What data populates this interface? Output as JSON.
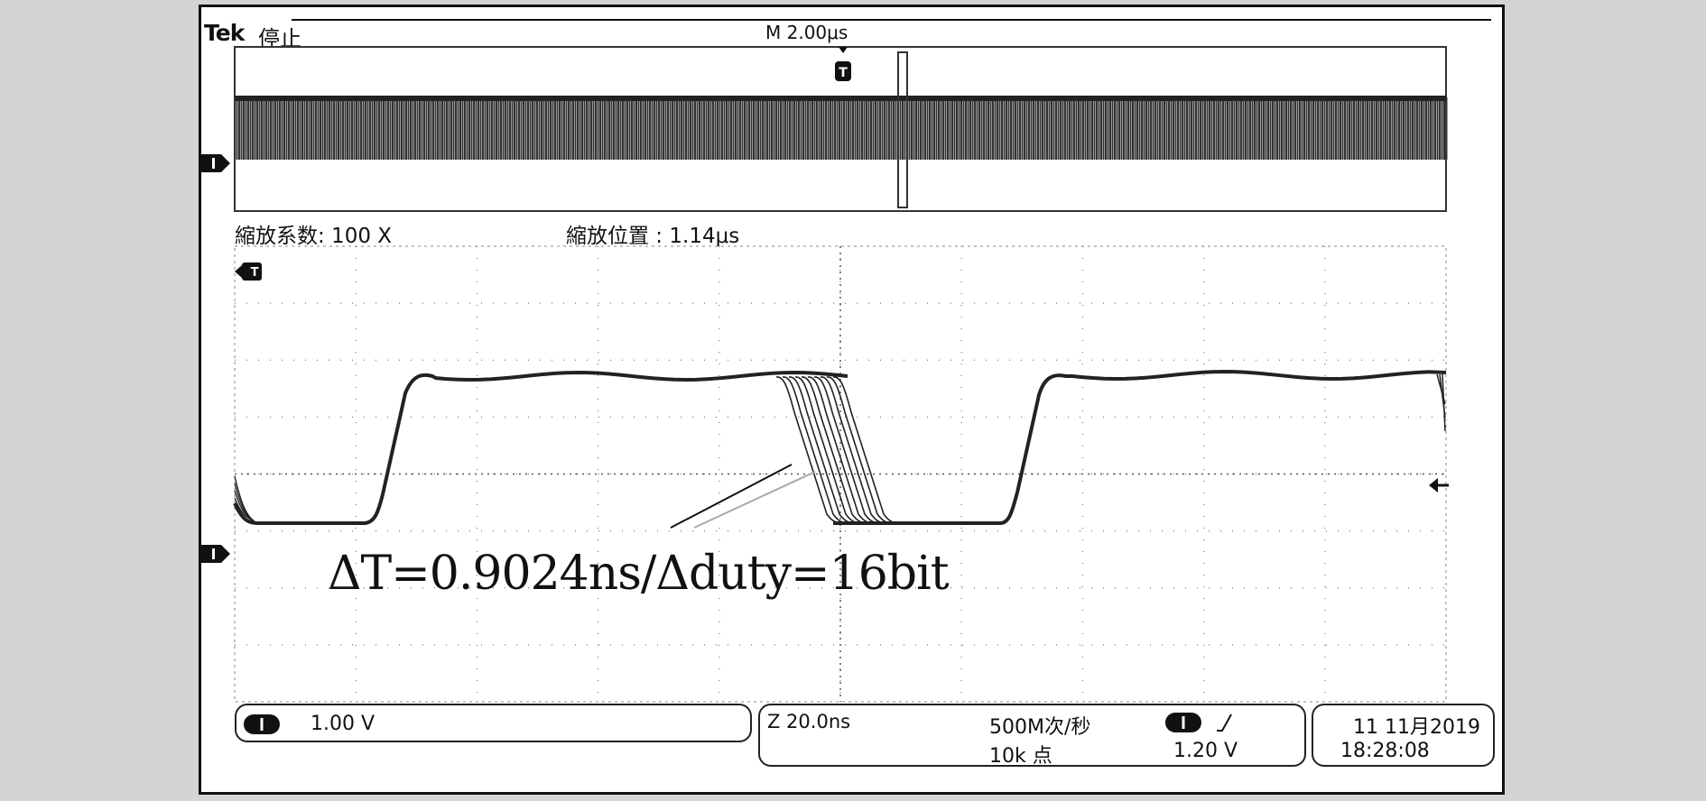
{
  "header": {
    "brand": "Tek",
    "state": "停止",
    "timebase": "M 2.00μs"
  },
  "zoom": {
    "factor_label": "縮放系数: 100 X",
    "position_label": "縮放位置 : 1.14μs"
  },
  "annotation": {
    "text": "ΔT=0.9024ns/Δduty=16bit"
  },
  "status": {
    "ch1_scale": "1.00 V",
    "zoom_scale": "Z 20.0ns",
    "sample_rate": "500M次/秒",
    "record_length": "10k 点",
    "trigger_level": "1.20 V",
    "date": "11 11月2019",
    "time": "18:28:08"
  },
  "colors": {
    "background": "#d4d4d4",
    "screen": "#ffffff",
    "trace": "#222222",
    "ink": "#111111"
  },
  "icons": {
    "channel_marker": "channel-1-ground-marker-icon",
    "trigger_marker": "trigger-position-marker-icon",
    "trigger_level": "trigger-level-arrow-icon",
    "rising_edge": "rising-edge-icon"
  }
}
